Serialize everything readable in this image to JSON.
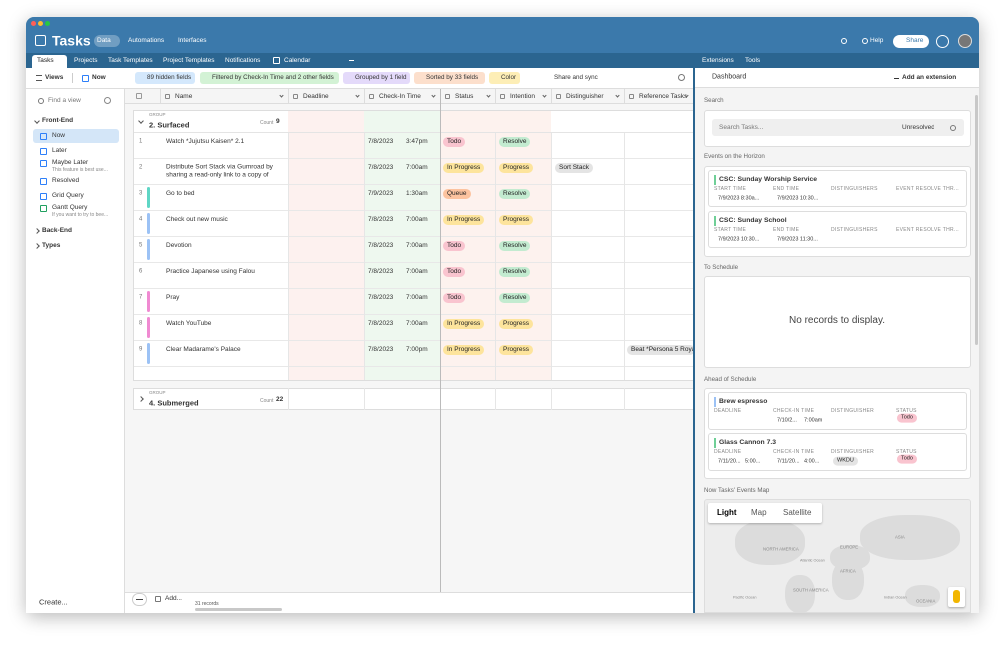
{
  "app": {
    "base_name": "Tasks",
    "tabs": [
      "Data",
      "Automations",
      "Interfaces"
    ],
    "help": "Help",
    "share": "Share"
  },
  "table_tabs": [
    "Tasks",
    "Projects",
    "Task Templates",
    "Project Templates",
    "Notifications",
    "Calendar"
  ],
  "toolbar": {
    "views": "Views",
    "current_view": "Now",
    "hidden_fields": "89 hidden fields",
    "filter": "Filtered by Check-In Time and 2 other fields",
    "group": "Grouped by 1 field",
    "sort": "Sorted by 33 fields",
    "color": "Color",
    "share_sync": "Share and sync"
  },
  "sidebar": {
    "search": "Find a view",
    "sections": [
      {
        "name": "Front-End",
        "views": [
          {
            "name": "Now",
            "selected": true
          },
          {
            "name": "Later"
          },
          {
            "name": "Maybe Later",
            "description": "This feature is best use..."
          },
          {
            "name": "Resolved"
          },
          {
            "name": "Grid Query"
          },
          {
            "name": "Gantt Query",
            "description": "If you want to try to bee..."
          }
        ]
      },
      {
        "name": "Back-End"
      },
      {
        "name": "Types"
      }
    ],
    "create": "Create..."
  },
  "option_colors": {
    "Todo": "#f9c4cf",
    "In Progress": "#fde49c",
    "Queue": "#fcc39f",
    "Resolve": "#c3ebd0",
    "Progress": "#fde49c",
    "WKDU": "#e4e4e4",
    "Sort Stack": "#e4e4e4"
  },
  "grid": {
    "columns": [
      "Name",
      "Deadline",
      "Check-In Time",
      "Status",
      "Intention",
      "Distinguisher",
      "Reference Tasks"
    ],
    "groups": [
      {
        "label": "GROUP",
        "name": "2. Surfaced",
        "count_label": "Count",
        "count": 9,
        "rows": [
          {
            "number": 1,
            "color": null,
            "name": "Watch *Jujutsu Kaisen* 2.1",
            "date": "7/8/2023",
            "time": "3:47pm",
            "status": "Todo",
            "intention": "Resolve",
            "distinguisher": null,
            "reference": null
          },
          {
            "number": 2,
            "color": null,
            "name": "Distribute Sort Stack via Gumroad by sharing a read-only link to a copy of you...",
            "date": "7/8/2023",
            "time": "7:00am",
            "status": "In Progress",
            "intention": "Progress",
            "distinguisher": "Sort Stack",
            "reference": null
          },
          {
            "number": 3,
            "color": "#5fd6c5",
            "name": "Go to bed",
            "date": "7/9/2023",
            "time": "1:30am",
            "status": "Queue",
            "intention": "Resolve",
            "distinguisher": null,
            "reference": null
          },
          {
            "number": 4,
            "color": "#9cc2f5",
            "name": "Check out new music",
            "date": "7/8/2023",
            "time": "7:00am",
            "status": "In Progress",
            "intention": "Progress",
            "distinguisher": null,
            "reference": null
          },
          {
            "number": 5,
            "color": "#9cc2f5",
            "name": "Devotion",
            "date": "7/8/2023",
            "time": "7:00am",
            "status": "Todo",
            "intention": "Resolve",
            "distinguisher": null,
            "reference": null
          },
          {
            "number": 6,
            "color": null,
            "name": "Practice Japanese using Falou",
            "date": "7/8/2023",
            "time": "7:00am",
            "status": "Todo",
            "intention": "Resolve",
            "distinguisher": null,
            "reference": null
          },
          {
            "number": 7,
            "color": "#f08ad2",
            "name": "Pray",
            "date": "7/8/2023",
            "time": "7:00am",
            "status": "Todo",
            "intention": "Resolve",
            "distinguisher": null,
            "reference": null
          },
          {
            "number": 8,
            "color": "#f08ad2",
            "name": "Watch YouTube",
            "date": "7/8/2023",
            "time": "7:00am",
            "status": "In Progress",
            "intention": "Progress",
            "distinguisher": null,
            "reference": null
          },
          {
            "number": 9,
            "color": "#9cc2f5",
            "name": "Clear Madarame's Palace",
            "date": "7/8/2023",
            "time": "7:00pm",
            "status": "In Progress",
            "intention": "Progress",
            "distinguisher": null,
            "reference": "Beat *Persona 5 Royal*"
          }
        ]
      },
      {
        "label": "GROUP",
        "name": "4. Submerged",
        "count_label": "Count",
        "count": 22
      }
    ],
    "add": "Add...",
    "records": "31 records"
  },
  "extensions": {
    "tabs": [
      "Extensions",
      "Tools"
    ],
    "dashboard": "Dashboard",
    "add": "Add an extension",
    "search": {
      "title": "Search",
      "placeholder": "Search Tasks...",
      "filter": "Unresolved"
    },
    "events": {
      "title": "Events on the Horizon",
      "fields": [
        "START TIME",
        "END TIME",
        "DISTINGUISHERS",
        "EVENT RESOLVE THR..."
      ],
      "cards": [
        {
          "name": "CSC: Sunday Worship Service",
          "start": "7/9/2023 8:30a...",
          "end": "7/9/2023 10:30..."
        },
        {
          "name": "CSC: Sunday School",
          "start": "7/9/2023 10:30...",
          "end": "7/9/2023 11:30..."
        }
      ]
    },
    "to_schedule": {
      "title": "To Schedule",
      "empty": "No records to display."
    },
    "ahead": {
      "title": "Ahead of Schedule",
      "fields": [
        "DEADLINE",
        "CHECK-IN TIME",
        "DISTINGUISHER",
        "STATUS"
      ],
      "cards": [
        {
          "name": "Brew espresso",
          "color": "#9cc2f5",
          "deadline_date": null,
          "deadline_time": null,
          "checkin_date": "7/10/2...",
          "checkin_time": "7:00am",
          "distinguisher": null,
          "status": "Todo"
        },
        {
          "name": "Glass Cannon 7.3",
          "color": "#6fcf97",
          "deadline_date": "7/11/20...",
          "deadline_time": "5:00...",
          "checkin_date": "7/11/20...",
          "checkin_time": "4:00...",
          "distinguisher": "WKDU",
          "status": "Todo"
        }
      ]
    },
    "map": {
      "title": "Now Tasks' Events Map",
      "buttons": [
        "Light",
        "Map",
        "Satellite"
      ],
      "labels": [
        "NORTH AMERICA",
        "EUROPE",
        "ASIA",
        "AFRICA",
        "SOUTH AMERICA",
        "Atlantic Ocean",
        "Pacific Ocean",
        "Indian Ocean",
        "OCEANIA"
      ]
    }
  }
}
